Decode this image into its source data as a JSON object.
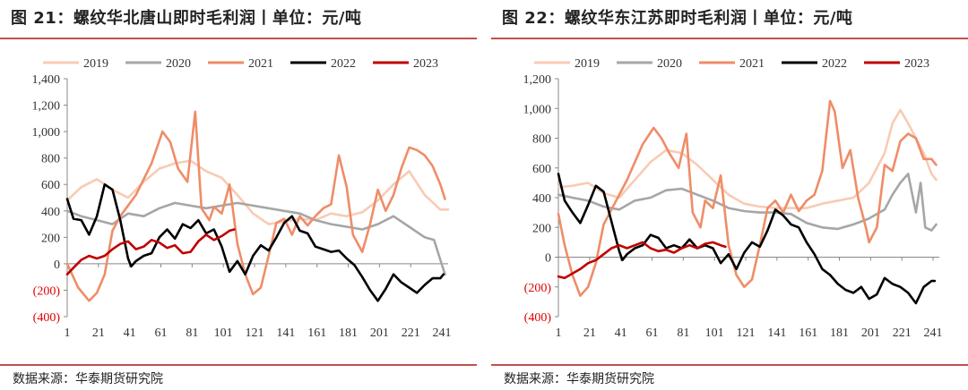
{
  "panels": [
    {
      "title": "图 21：螺纹华北唐山即时毛利润丨单位：元/吨",
      "source": "数据来源：华泰期货研究院"
    },
    {
      "title": "图 22：螺纹华东江苏即时毛利润丨单位：元/吨",
      "source": "数据来源：华泰期货研究院"
    }
  ],
  "colors": {
    "2019": "#f8cbb4",
    "2020": "#a6a6a6",
    "2021": "#ee8d68",
    "2022": "#000000",
    "2023": "#c00000",
    "negative_tick": "#e00000",
    "accent_line": "#c0504d"
  },
  "chart_data": [
    {
      "type": "line",
      "title": "图 21：螺纹华北唐山即时毛利润丨单位：元/吨",
      "xlabel": "",
      "ylabel": "",
      "ylim": [
        -400,
        1400
      ],
      "yticks": [
        -400,
        -200,
        0,
        200,
        400,
        600,
        800,
        1000,
        1200,
        1400
      ],
      "ytick_labels": [
        "(400)",
        "(200)",
        "0",
        "200",
        "400",
        "600",
        "800",
        "1,000",
        "1,200",
        "1,400"
      ],
      "xlim": [
        1,
        245
      ],
      "xticks": [
        1,
        21,
        41,
        61,
        81,
        101,
        121,
        141,
        161,
        181,
        201,
        221,
        241
      ],
      "legend": "top",
      "series": [
        {
          "name": "2019",
          "x": [
            1,
            10,
            20,
            30,
            40,
            50,
            60,
            70,
            80,
            90,
            100,
            110,
            120,
            130,
            140,
            150,
            160,
            170,
            180,
            190,
            200,
            210,
            220,
            230,
            240,
            245
          ],
          "y": [
            480,
            580,
            640,
            560,
            500,
            620,
            720,
            760,
            780,
            700,
            650,
            520,
            380,
            300,
            320,
            340,
            330,
            380,
            360,
            390,
            480,
            600,
            700,
            520,
            410,
            410
          ]
        },
        {
          "name": "2020",
          "x": [
            1,
            10,
            20,
            30,
            40,
            50,
            60,
            70,
            80,
            90,
            100,
            110,
            120,
            130,
            140,
            150,
            160,
            170,
            180,
            190,
            200,
            210,
            220,
            230,
            236,
            240,
            243
          ],
          "y": [
            400,
            360,
            330,
            300,
            380,
            360,
            420,
            460,
            440,
            420,
            440,
            460,
            440,
            420,
            400,
            380,
            330,
            300,
            280,
            260,
            300,
            360,
            280,
            200,
            180,
            30,
            -80
          ]
        },
        {
          "name": "2021",
          "x": [
            1,
            8,
            15,
            20,
            25,
            30,
            35,
            45,
            55,
            62,
            67,
            72,
            78,
            83,
            87,
            92,
            95,
            100,
            105,
            110,
            115,
            120,
            125,
            130,
            135,
            140,
            145,
            150,
            155,
            160,
            165,
            170,
            175,
            180,
            184,
            190,
            195,
            200,
            205,
            210,
            215,
            220,
            225,
            230,
            235,
            240,
            243
          ],
          "y": [
            0,
            -180,
            -280,
            -220,
            -80,
            250,
            360,
            520,
            760,
            1000,
            920,
            720,
            620,
            1150,
            420,
            330,
            430,
            380,
            600,
            150,
            -80,
            -230,
            -180,
            60,
            310,
            340,
            220,
            360,
            290,
            360,
            420,
            450,
            820,
            580,
            220,
            90,
            300,
            560,
            400,
            520,
            720,
            880,
            860,
            820,
            740,
            600,
            490
          ]
        },
        {
          "name": "2022",
          "x": [
            1,
            5,
            10,
            15,
            20,
            25,
            30,
            35,
            40,
            42,
            45,
            50,
            55,
            60,
            65,
            70,
            75,
            80,
            85,
            90,
            95,
            100,
            105,
            110,
            115,
            120,
            125,
            130,
            135,
            140,
            145,
            150,
            155,
            160,
            165,
            170,
            175,
            180,
            185,
            190,
            195,
            200,
            205,
            210,
            215,
            220,
            225,
            230,
            235,
            240,
            242
          ],
          "y": [
            490,
            340,
            330,
            220,
            360,
            600,
            560,
            330,
            40,
            -20,
            20,
            60,
            80,
            200,
            260,
            190,
            300,
            270,
            330,
            230,
            260,
            130,
            -60,
            20,
            -80,
            60,
            140,
            100,
            200,
            310,
            360,
            250,
            230,
            130,
            110,
            90,
            100,
            40,
            -10,
            -100,
            -200,
            -280,
            -190,
            -80,
            -140,
            -180,
            -220,
            -160,
            -110,
            -110,
            -80
          ]
        },
        {
          "name": "2023",
          "x": [
            1,
            5,
            10,
            15,
            20,
            25,
            30,
            35,
            40,
            45,
            50,
            55,
            60,
            65,
            70,
            75,
            80,
            85,
            90,
            95,
            100,
            105,
            108
          ],
          "y": [
            -80,
            -30,
            30,
            60,
            40,
            60,
            110,
            150,
            170,
            110,
            130,
            180,
            160,
            120,
            140,
            80,
            90,
            170,
            220,
            180,
            210,
            250,
            260
          ]
        }
      ]
    },
    {
      "type": "line",
      "title": "图 22：螺纹华东江苏即时毛利润丨单位：元/吨",
      "xlabel": "",
      "ylabel": "",
      "ylim": [
        -400,
        1200
      ],
      "yticks": [
        -400,
        -200,
        0,
        200,
        400,
        600,
        800,
        1000,
        1200
      ],
      "ytick_labels": [
        "(400)",
        "(200)",
        "0",
        "200",
        "400",
        "600",
        "800",
        "1,000",
        "1,200"
      ],
      "xlim": [
        1,
        245
      ],
      "xticks": [
        1,
        21,
        41,
        61,
        81,
        101,
        121,
        141,
        161,
        181,
        201,
        221,
        241
      ],
      "legend": "top",
      "series": [
        {
          "name": "2019",
          "x": [
            1,
            10,
            20,
            30,
            40,
            50,
            60,
            70,
            80,
            90,
            100,
            110,
            120,
            130,
            140,
            150,
            160,
            170,
            180,
            190,
            200,
            210,
            215,
            220,
            225,
            230,
            235,
            240,
            243
          ],
          "y": [
            470,
            480,
            500,
            430,
            400,
            520,
            640,
            720,
            700,
            620,
            520,
            420,
            360,
            340,
            330,
            330,
            330,
            360,
            380,
            400,
            500,
            700,
            900,
            990,
            900,
            800,
            700,
            560,
            520
          ]
        },
        {
          "name": "2020",
          "x": [
            1,
            10,
            20,
            30,
            40,
            50,
            60,
            70,
            80,
            90,
            100,
            110,
            120,
            130,
            140,
            150,
            160,
            170,
            180,
            190,
            200,
            210,
            215,
            220,
            225,
            230,
            233,
            236,
            240,
            243
          ],
          "y": [
            420,
            400,
            380,
            340,
            320,
            380,
            400,
            450,
            460,
            420,
            380,
            330,
            310,
            300,
            300,
            290,
            230,
            200,
            190,
            220,
            260,
            320,
            420,
            500,
            560,
            300,
            500,
            200,
            180,
            220
          ]
        },
        {
          "name": "2021",
          "x": [
            1,
            5,
            10,
            15,
            20,
            25,
            30,
            35,
            45,
            55,
            62,
            67,
            72,
            78,
            83,
            87,
            92,
            95,
            100,
            105,
            110,
            115,
            120,
            125,
            130,
            135,
            140,
            145,
            150,
            155,
            160,
            165,
            170,
            175,
            178,
            183,
            188,
            193,
            198,
            200,
            205,
            210,
            215,
            220,
            225,
            230,
            235,
            240,
            243
          ],
          "y": [
            290,
            80,
            -120,
            -260,
            -200,
            -40,
            220,
            320,
            520,
            760,
            870,
            800,
            700,
            600,
            830,
            300,
            200,
            380,
            330,
            550,
            80,
            -120,
            -200,
            -150,
            80,
            330,
            380,
            300,
            420,
            310,
            380,
            420,
            580,
            1050,
            980,
            600,
            720,
            400,
            200,
            100,
            200,
            620,
            580,
            780,
            830,
            800,
            660,
            660,
            620
          ]
        },
        {
          "name": "2022",
          "x": [
            1,
            5,
            10,
            15,
            20,
            25,
            30,
            35,
            40,
            42,
            45,
            50,
            55,
            60,
            65,
            70,
            75,
            80,
            85,
            90,
            95,
            100,
            105,
            110,
            115,
            120,
            125,
            130,
            135,
            140,
            145,
            150,
            155,
            160,
            165,
            170,
            175,
            180,
            185,
            190,
            195,
            200,
            205,
            210,
            215,
            220,
            225,
            230,
            235,
            240,
            242
          ],
          "y": [
            560,
            380,
            300,
            230,
            350,
            480,
            440,
            240,
            40,
            -20,
            20,
            60,
            80,
            150,
            130,
            60,
            80,
            60,
            120,
            60,
            80,
            60,
            -40,
            20,
            -80,
            30,
            100,
            70,
            180,
            320,
            280,
            220,
            200,
            100,
            20,
            -80,
            -120,
            -180,
            -220,
            -240,
            -200,
            -280,
            -250,
            -140,
            -180,
            -200,
            -240,
            -310,
            -200,
            -160,
            -160
          ]
        },
        {
          "name": "2023",
          "x": [
            1,
            5,
            10,
            15,
            20,
            25,
            30,
            35,
            40,
            45,
            50,
            55,
            60,
            65,
            70,
            75,
            80,
            85,
            90,
            95,
            100,
            105,
            108
          ],
          "y": [
            -130,
            -140,
            -110,
            -80,
            -40,
            -20,
            20,
            60,
            80,
            60,
            80,
            100,
            60,
            40,
            50,
            30,
            60,
            80,
            60,
            90,
            100,
            80,
            70
          ]
        }
      ]
    }
  ]
}
